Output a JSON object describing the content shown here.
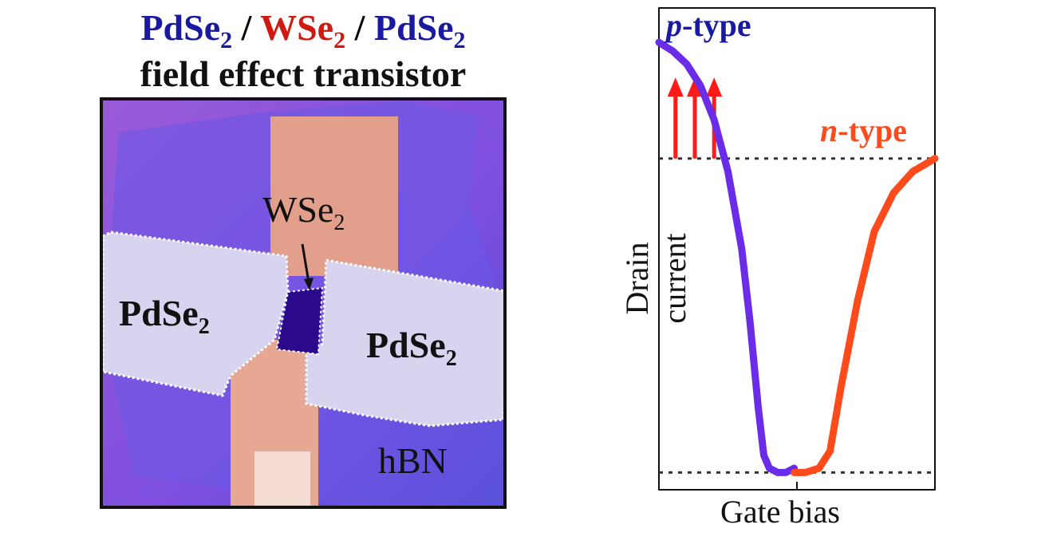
{
  "title": {
    "line1": {
      "a": "PdSe",
      "a_sub": "2",
      "sep1": " / ",
      "b": "WSe",
      "b_sub": "2",
      "sep2": " / ",
      "c": "PdSe",
      "c_sub": "2"
    },
    "line2": "field effect transistor"
  },
  "micrograph": {
    "labels": {
      "wse2": "WSe",
      "wse2_sub": "2",
      "pdse2_left": "PdSe",
      "pdse2_left_sub": "2",
      "pdse2_right": "PdSe",
      "pdse2_right_sub": "2",
      "hbn": "hBN"
    }
  },
  "colors": {
    "blue": "#1a1aa0",
    "red": "#d0190f",
    "p_curve": "#6a2ce8",
    "n_curve": "#ff4a1c",
    "arrow": "#ff1a1a"
  },
  "chart_data": {
    "type": "line",
    "xlabel": "Gate bias",
    "ylabel": "Drain current",
    "annotations": [
      {
        "text_prefix": "p",
        "text_suffix": "-type",
        "color": "#1a1aa0"
      },
      {
        "text_prefix": "n",
        "text_suffix": "-type",
        "color": "#ff4a1c"
      }
    ],
    "series": [
      {
        "label": "p",
        "color": "#6a2ce8",
        "x": [
          0.0,
          0.05,
          0.1,
          0.15,
          0.2,
          0.25,
          0.3,
          0.33,
          0.36,
          0.38,
          0.4,
          0.43,
          0.46,
          0.49
        ],
        "y": [
          1.0,
          0.98,
          0.95,
          0.9,
          0.82,
          0.7,
          0.52,
          0.35,
          0.15,
          0.04,
          0.01,
          0.0,
          0.0,
          0.01
        ]
      },
      {
        "label": "n",
        "color": "#ff4a1c",
        "x": [
          0.49,
          0.53,
          0.58,
          0.62,
          0.66,
          0.72,
          0.78,
          0.85,
          0.92,
          1.0
        ],
        "y": [
          0.0,
          0.0,
          0.01,
          0.05,
          0.2,
          0.4,
          0.56,
          0.65,
          0.7,
          0.73
        ]
      }
    ],
    "reference_lines": {
      "upper": 0.73,
      "lower": 0.0
    },
    "xlim": [
      0,
      1
    ],
    "ylim": [
      -0.04,
      1.08
    ],
    "grid": false
  }
}
